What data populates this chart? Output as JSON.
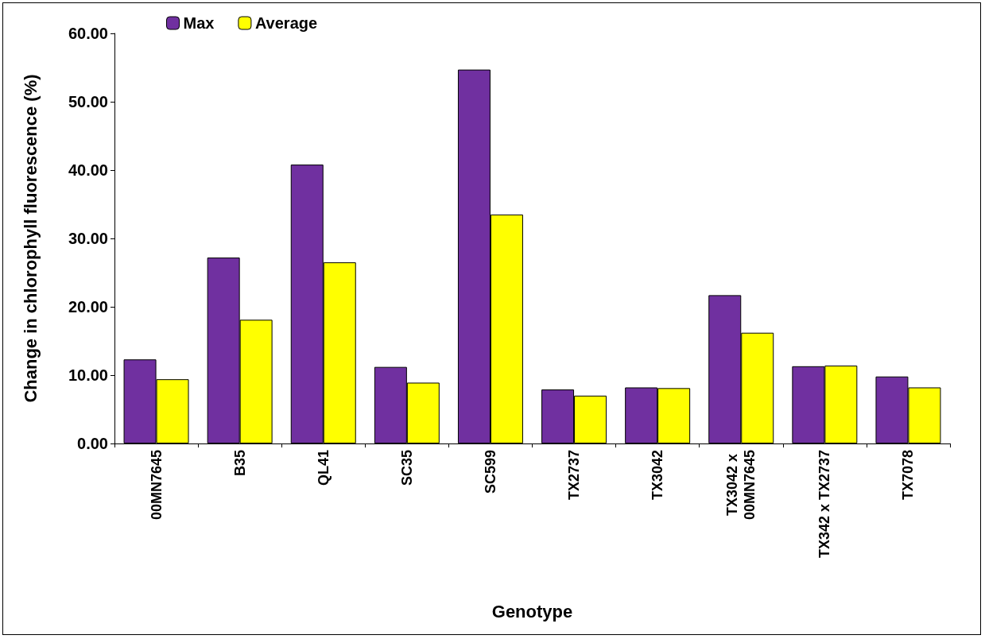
{
  "chart_data": {
    "type": "bar",
    "xlabel": "Genotype",
    "ylabel": "Change in chlorophyll fluorescence (%)",
    "categories": [
      "00MN7645",
      "B35",
      "QL41",
      "SC35",
      "SC599",
      "TX2737",
      "TX3042",
      "TX3042 x 00MN7645",
      "TX342 x TX2737",
      "TX7078"
    ],
    "series": [
      {
        "name": "Max",
        "color": "#7030a0",
        "values": [
          12.3,
          27.2,
          40.8,
          11.2,
          54.7,
          7.9,
          8.2,
          21.7,
          11.3,
          9.8
        ]
      },
      {
        "name": "Average",
        "color": "#ffff00",
        "values": [
          9.4,
          18.1,
          26.5,
          8.9,
          33.5,
          7.0,
          8.1,
          16.2,
          11.4,
          8.2
        ]
      }
    ],
    "ylim": [
      0,
      60
    ],
    "yticks": [
      {
        "value": 0,
        "label": "0.00"
      },
      {
        "value": 10,
        "label": "10.00"
      },
      {
        "value": 20,
        "label": "20.00"
      },
      {
        "value": 30,
        "label": "30.00"
      },
      {
        "value": 40,
        "label": "40.00"
      },
      {
        "value": 50,
        "label": "50.00"
      },
      {
        "value": 60,
        "label": "60.00"
      }
    ],
    "grid": false,
    "legend": "top left"
  }
}
